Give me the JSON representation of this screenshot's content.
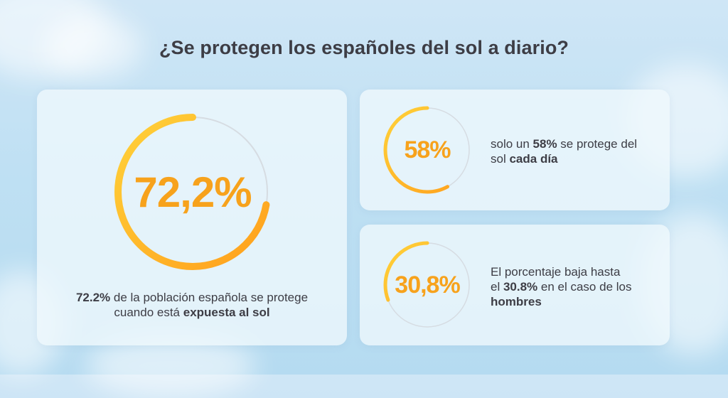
{
  "title": "¿Se protegen los españoles del sol a diario?",
  "colors": {
    "ring_start": "#ff9f1c",
    "ring_end": "#ffd23a",
    "track": "#d6dce2",
    "percent_text": "#f7a21c"
  },
  "chart_data": {
    "type": "pie",
    "title": "¿Se protegen los españoles del sol a diario?",
    "items": [
      {
        "id": "general",
        "label": "72,2%",
        "value": 72.2
      },
      {
        "id": "daily",
        "label": "58%",
        "value": 58
      },
      {
        "id": "men",
        "label": "30,8%",
        "value": 30.8
      }
    ]
  },
  "cards": {
    "general": {
      "desc_1": "72.2%",
      "desc_2": " de la población española se protege cuando está ",
      "desc_3": "expuesta al sol"
    },
    "daily": {
      "desc_1": "solo un ",
      "desc_2": "58%",
      "desc_3": " se protege del sol ",
      "desc_4": "cada día"
    },
    "men": {
      "desc_1": "El porcentaje baja hasta el ",
      "desc_2": "30.8%",
      "desc_3": " en el caso de los ",
      "desc_4": "hombres"
    }
  }
}
